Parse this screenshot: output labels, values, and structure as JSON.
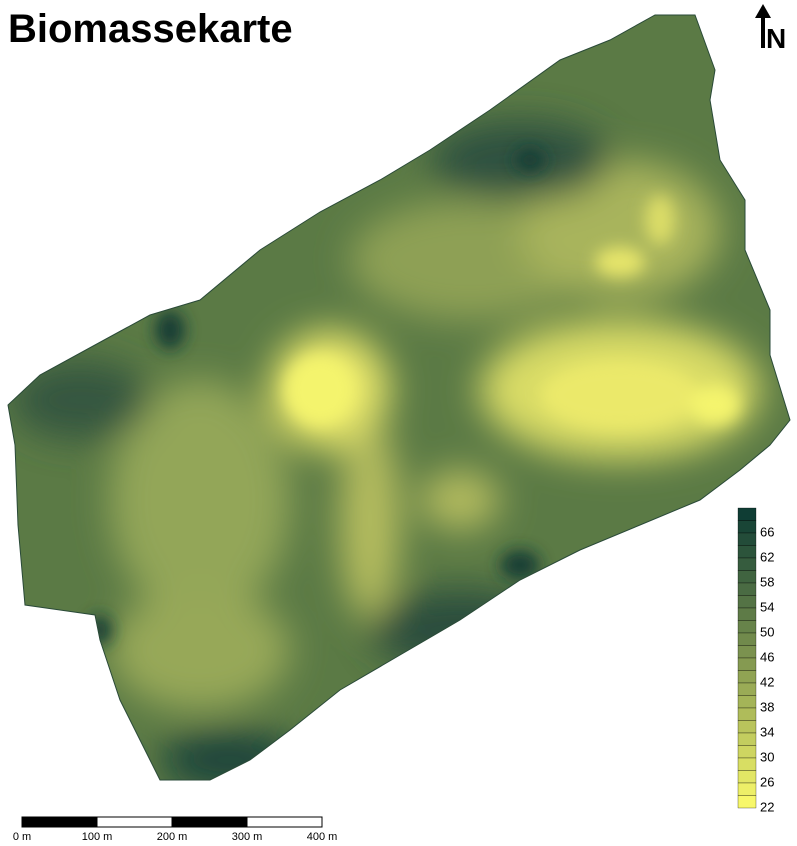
{
  "header": {
    "title": "Biomassekarte",
    "north": "N"
  },
  "legend": {
    "labels": [
      "66",
      "62",
      "58",
      "54",
      "50",
      "46",
      "42",
      "38",
      "34",
      "30",
      "26",
      "22"
    ]
  },
  "scale_bar": {
    "labels": [
      "0 m",
      "100 m",
      "200 m",
      "300 m",
      "400 m"
    ]
  }
}
